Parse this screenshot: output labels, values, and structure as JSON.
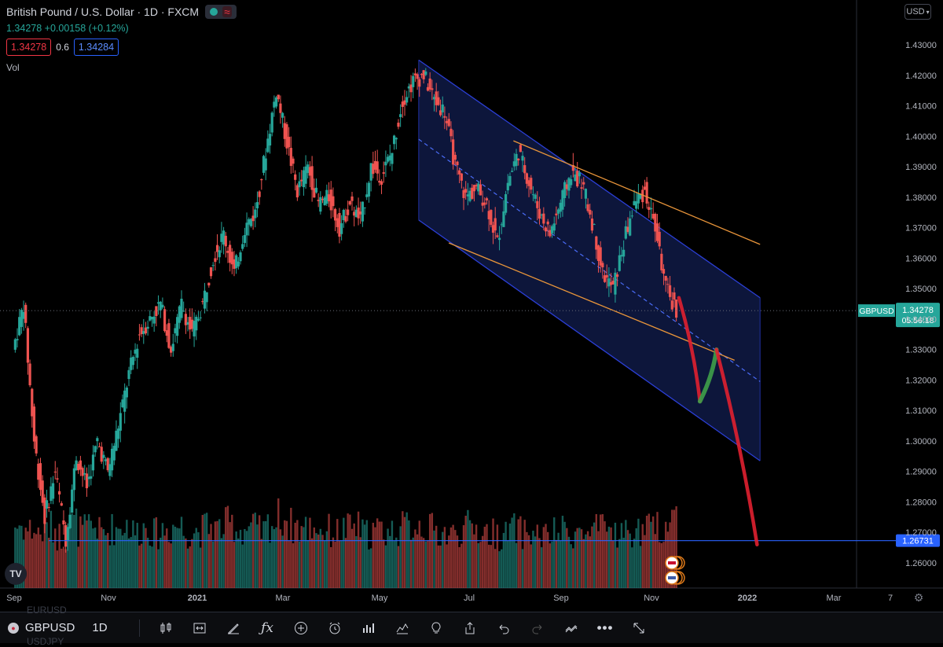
{
  "header": {
    "title": "British Pound / U.S. Dollar · 1D · FXCM",
    "change": "1.34278 +0.00158 (+0.12%)",
    "sell_price": "1.34278",
    "spread": "0.6",
    "buy_price": "1.34284",
    "volume_label": "Vol",
    "currency": "USD"
  },
  "chart_data": {
    "type": "candlestick",
    "title": "British Pound / U.S. Dollar · 1D · FXCM",
    "x_tick_labels": [
      "Sep",
      "Nov",
      "2021",
      "Mar",
      "May",
      "Jul",
      "Sep",
      "Nov",
      "2022",
      "Mar",
      "7"
    ],
    "y_tick_labels": [
      "1.43000",
      "1.42000",
      "1.41000",
      "1.40000",
      "1.39000",
      "1.38000",
      "1.37000",
      "1.36000",
      "1.35000",
      "1.34000",
      "1.33000",
      "1.32000",
      "1.31000",
      "1.30000",
      "1.29000",
      "1.28000",
      "1.27000",
      "1.26000"
    ],
    "ylim": [
      1.255,
      1.435
    ],
    "last_price": 1.34278,
    "last_price_label": "GBPUSD",
    "countdown": "05:56:18",
    "target_level": 1.26731,
    "target_label": "1.26731",
    "price_path": [
      {
        "date": "2020-09-01",
        "close": 1.33
      },
      {
        "date": "2020-09-08",
        "close": 1.345
      },
      {
        "date": "2020-09-15",
        "close": 1.3
      },
      {
        "date": "2020-09-22",
        "close": 1.275
      },
      {
        "date": "2020-09-29",
        "close": 1.29
      },
      {
        "date": "2020-10-06",
        "close": 1.268
      },
      {
        "date": "2020-10-13",
        "close": 1.295
      },
      {
        "date": "2020-10-20",
        "close": 1.285
      },
      {
        "date": "2020-10-27",
        "close": 1.3
      },
      {
        "date": "2020-11-03",
        "close": 1.29
      },
      {
        "date": "2020-11-10",
        "close": 1.305
      },
      {
        "date": "2020-11-17",
        "close": 1.322
      },
      {
        "date": "2020-11-24",
        "close": 1.335
      },
      {
        "date": "2020-12-01",
        "close": 1.34
      },
      {
        "date": "2020-12-08",
        "close": 1.345
      },
      {
        "date": "2020-12-15",
        "close": 1.33
      },
      {
        "date": "2020-12-22",
        "close": 1.345
      },
      {
        "date": "2020-12-29",
        "close": 1.335
      },
      {
        "date": "2021-01-05",
        "close": 1.345
      },
      {
        "date": "2021-01-12",
        "close": 1.36
      },
      {
        "date": "2021-01-19",
        "close": 1.368
      },
      {
        "date": "2021-01-26",
        "close": 1.355
      },
      {
        "date": "2021-02-02",
        "close": 1.37
      },
      {
        "date": "2021-02-09",
        "close": 1.375
      },
      {
        "date": "2021-02-16",
        "close": 1.395
      },
      {
        "date": "2021-02-23",
        "close": 1.415
      },
      {
        "date": "2021-03-02",
        "close": 1.398
      },
      {
        "date": "2021-03-09",
        "close": 1.382
      },
      {
        "date": "2021-03-16",
        "close": 1.39
      },
      {
        "date": "2021-03-23",
        "close": 1.378
      },
      {
        "date": "2021-03-30",
        "close": 1.38
      },
      {
        "date": "2021-04-06",
        "close": 1.37
      },
      {
        "date": "2021-04-13",
        "close": 1.378
      },
      {
        "date": "2021-04-20",
        "close": 1.372
      },
      {
        "date": "2021-04-27",
        "close": 1.39
      },
      {
        "date": "2021-05-04",
        "close": 1.387
      },
      {
        "date": "2021-05-11",
        "close": 1.395
      },
      {
        "date": "2021-05-18",
        "close": 1.412
      },
      {
        "date": "2021-05-25",
        "close": 1.418
      },
      {
        "date": "2021-06-01",
        "close": 1.42
      },
      {
        "date": "2021-06-08",
        "close": 1.412
      },
      {
        "date": "2021-06-15",
        "close": 1.408
      },
      {
        "date": "2021-06-22",
        "close": 1.39
      },
      {
        "date": "2021-06-29",
        "close": 1.38
      },
      {
        "date": "2021-07-06",
        "close": 1.383
      },
      {
        "date": "2021-07-13",
        "close": 1.378
      },
      {
        "date": "2021-07-20",
        "close": 1.365
      },
      {
        "date": "2021-07-27",
        "close": 1.385
      },
      {
        "date": "2021-08-03",
        "close": 1.395
      },
      {
        "date": "2021-08-10",
        "close": 1.385
      },
      {
        "date": "2021-08-17",
        "close": 1.375
      },
      {
        "date": "2021-08-24",
        "close": 1.368
      },
      {
        "date": "2021-08-31",
        "close": 1.378
      },
      {
        "date": "2021-09-07",
        "close": 1.388
      },
      {
        "date": "2021-09-14",
        "close": 1.385
      },
      {
        "date": "2021-09-21",
        "close": 1.372
      },
      {
        "date": "2021-09-28",
        "close": 1.355
      },
      {
        "date": "2021-10-05",
        "close": 1.35
      },
      {
        "date": "2021-10-12",
        "close": 1.365
      },
      {
        "date": "2021-10-19",
        "close": 1.378
      },
      {
        "date": "2021-10-26",
        "close": 1.382
      },
      {
        "date": "2021-11-02",
        "close": 1.37
      },
      {
        "date": "2021-11-09",
        "close": 1.35
      },
      {
        "date": "2021-11-16",
        "close": 1.343
      }
    ],
    "volume_path": [
      62,
      58,
      55,
      60,
      52,
      64,
      57,
      61,
      55,
      59,
      63,
      56,
      60,
      54,
      58,
      62,
      55,
      57,
      61,
      59,
      63,
      58,
      60,
      56,
      64,
      70,
      62,
      59,
      61,
      57,
      55,
      58,
      60,
      54,
      57,
      56,
      59,
      61,
      63,
      58,
      55,
      53,
      57,
      60,
      56,
      54,
      52,
      58,
      55,
      53,
      51,
      54,
      56,
      55,
      52,
      57,
      59,
      55,
      54,
      56,
      58,
      60,
      72,
      61
    ],
    "channel": {
      "upper": [
        {
          "date": "2021-05-28",
          "price": 1.425
        },
        {
          "date": "2022-01-10",
          "price": 1.347
        }
      ],
      "middle": [
        {
          "date": "2021-05-28",
          "price": 1.399
        },
        {
          "date": "2022-01-10",
          "price": 1.3195
        }
      ],
      "lower": [
        {
          "date": "2021-05-28",
          "price": 1.3725
        },
        {
          "date": "2022-01-10",
          "price": 1.2935
        }
      ]
    },
    "trendlines": [
      {
        "from": {
          "date": "2021-07-30",
          "price": 1.3985
        },
        "to": {
          "date": "2022-01-10",
          "price": 1.3645
        }
      },
      {
        "from": {
          "date": "2021-06-17",
          "price": 1.365
        },
        "to": {
          "date": "2021-12-24",
          "price": 1.3265
        }
      }
    ],
    "projection_red_1": [
      {
        "date": "2021-11-17",
        "price": 1.347
      },
      {
        "date": "2021-12-01",
        "price": 1.313
      }
    ],
    "projection_green": [
      {
        "date": "2021-12-01",
        "price": 1.313
      },
      {
        "date": "2021-12-12",
        "price": 1.33
      }
    ],
    "projection_red_2": [
      {
        "date": "2021-12-12",
        "price": 1.33
      },
      {
        "date": "2022-01-08",
        "price": 1.266
      }
    ]
  },
  "toolbar": {
    "ghost_top": "EURUSD",
    "ghost_bottom": "USDJPY",
    "symbol": "GBPUSD",
    "timeframe": "1D",
    "logo_text": "TV"
  },
  "colors": {
    "up": "#26a69a",
    "down": "#ef5350",
    "channel": "#2b3fd6",
    "channel_fill": "#0f1a45",
    "trendline": "#e9953a",
    "projection_red": "#e02030",
    "projection_green": "#3fa04a",
    "target_line": "#2962ff"
  }
}
